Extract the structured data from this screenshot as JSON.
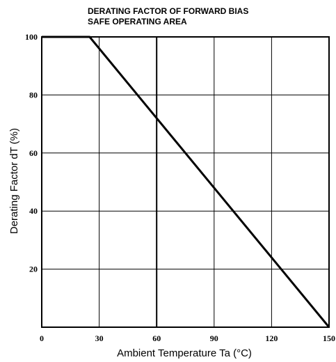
{
  "chart_data": {
    "type": "line",
    "title_line1": "DERATING FACTOR OF FORWARD BIAS",
    "title_line2": "SAFE OPERATING AREA",
    "xlabel": "Ambient Temperature  Ta (°C)",
    "ylabel": "Derating Factor  dT (%)",
    "xlim": [
      0,
      150
    ],
    "ylim": [
      0,
      100
    ],
    "x_ticks": [
      0,
      30,
      60,
      90,
      120,
      150
    ],
    "x_tick_labels": [
      "0",
      "30",
      "60",
      "90",
      "120",
      "150"
    ],
    "y_ticks": [
      20,
      40,
      60,
      80,
      100
    ],
    "y_tick_labels": [
      "20",
      "40",
      "60",
      "80",
      "100"
    ],
    "grid": true,
    "series": [
      {
        "x": [
          0,
          25,
          150
        ],
        "y": [
          100,
          100,
          0
        ],
        "color": "#000000"
      }
    ]
  }
}
